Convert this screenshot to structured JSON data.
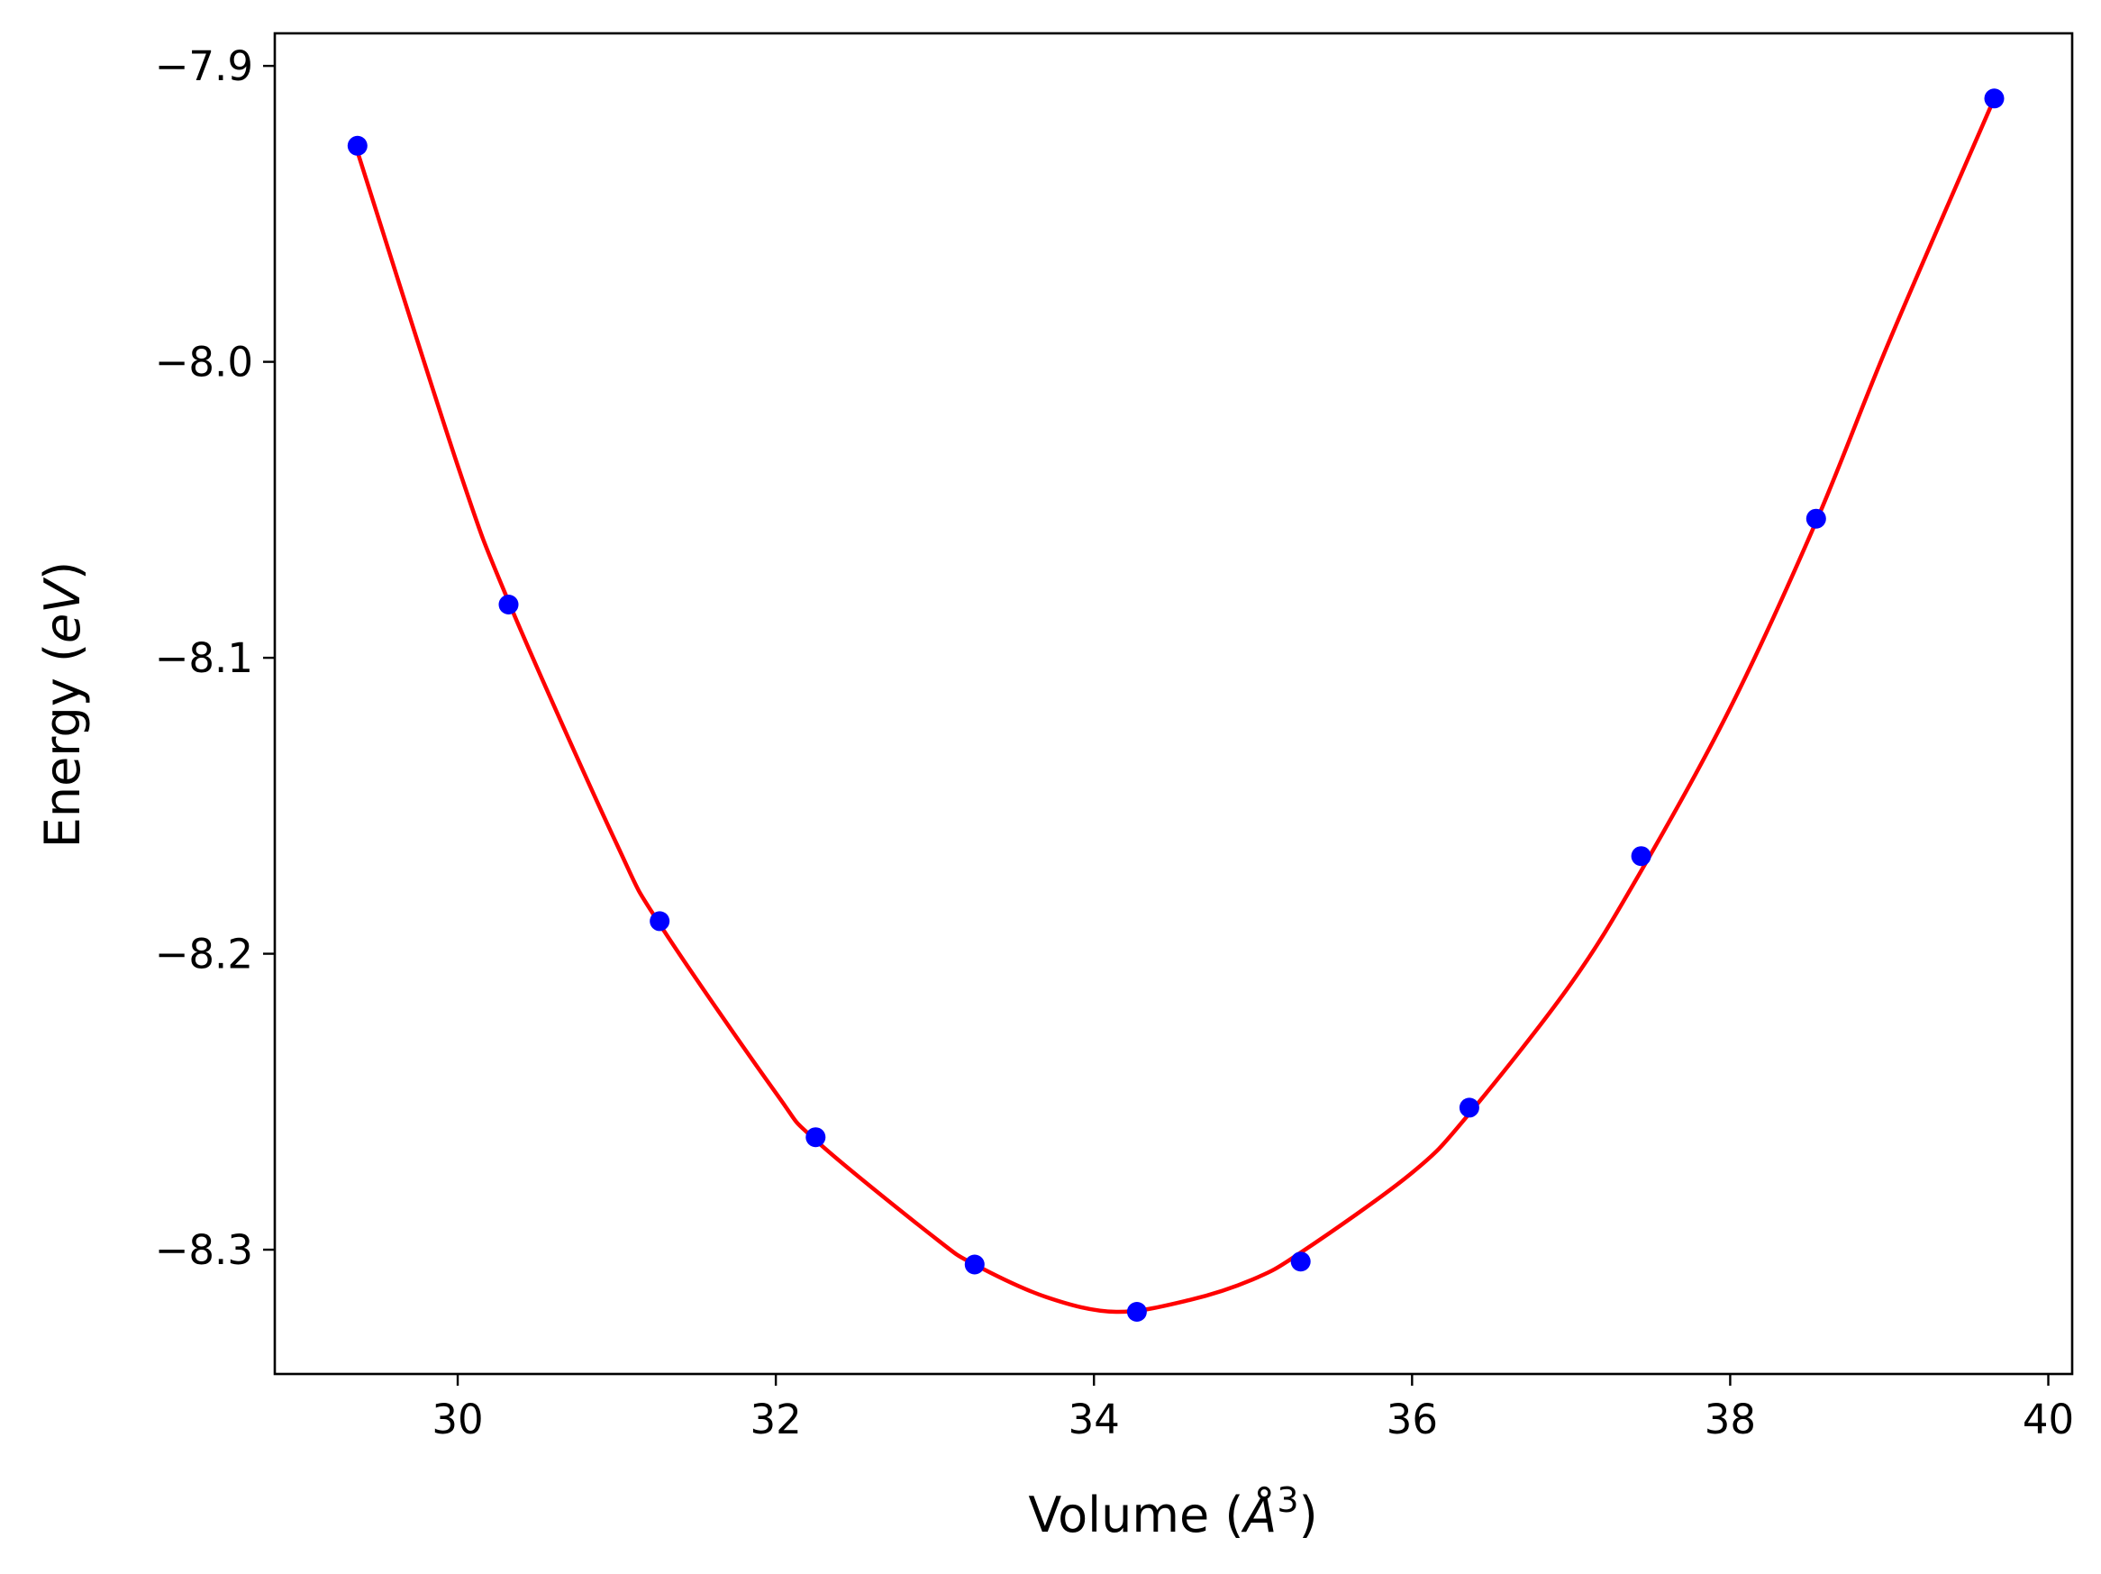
{
  "chart_data": {
    "type": "scatter",
    "xlabel": "Volume",
    "xlabel_unit_base": "Å",
    "xlabel_unit_exp": "3",
    "ylabel": "Energy",
    "ylabel_unit": "eV",
    "xlim": [
      28.85,
      40.15
    ],
    "ylim": [
      -8.342,
      -7.889
    ],
    "xticks": [
      30,
      32,
      34,
      36,
      38,
      40
    ],
    "xtick_labels": [
      "30",
      "32",
      "34",
      "36",
      "38",
      "40"
    ],
    "yticks": [
      -7.9,
      -8.0,
      -8.1,
      -8.2,
      -8.3
    ],
    "ytick_labels": [
      "−7.9",
      "−8.0",
      "−8.1",
      "−8.2",
      "−8.3"
    ],
    "grid": false,
    "series": [
      {
        "kind": "points",
        "color": "#0000ff",
        "x": [
          29.37,
          30.32,
          31.27,
          32.25,
          33.25,
          34.27,
          35.3,
          36.36,
          37.44,
          38.54,
          39.66
        ],
        "y": [
          -7.927,
          -8.082,
          -8.189,
          -8.262,
          -8.305,
          -8.321,
          -8.304,
          -8.252,
          -8.167,
          -8.053,
          -7.911
        ]
      },
      {
        "kind": "fit",
        "color": "#ff0000",
        "x": [
          29.37,
          30.0,
          30.32,
          31.0,
          31.27,
          32.0,
          32.25,
          33.0,
          33.25,
          33.7,
          34.14,
          34.6,
          35.0,
          35.3,
          36.0,
          36.36,
          37.0,
          37.44,
          38.0,
          38.54,
          39.0,
          39.66
        ],
        "y": [
          -7.929,
          -8.035,
          -8.081,
          -8.163,
          -8.19,
          -8.247,
          -8.263,
          -8.296,
          -8.305,
          -8.316,
          -8.321,
          -8.317,
          -8.31,
          -8.301,
          -8.274,
          -8.254,
          -8.21,
          -8.172,
          -8.117,
          -8.054,
          -7.993,
          -7.911
        ]
      }
    ]
  }
}
